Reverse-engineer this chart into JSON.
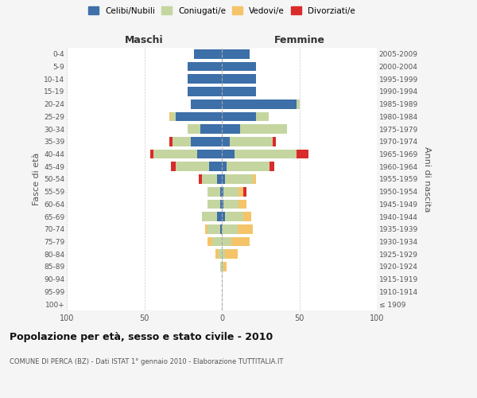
{
  "age_groups": [
    "100+",
    "95-99",
    "90-94",
    "85-89",
    "80-84",
    "75-79",
    "70-74",
    "65-69",
    "60-64",
    "55-59",
    "50-54",
    "45-49",
    "40-44",
    "35-39",
    "30-34",
    "25-29",
    "20-24",
    "15-19",
    "10-14",
    "5-9",
    "0-4"
  ],
  "birth_years": [
    "≤ 1909",
    "1910-1914",
    "1915-1919",
    "1920-1924",
    "1925-1929",
    "1930-1934",
    "1935-1939",
    "1940-1944",
    "1945-1949",
    "1950-1954",
    "1955-1959",
    "1960-1964",
    "1965-1969",
    "1970-1974",
    "1975-1979",
    "1980-1984",
    "1985-1989",
    "1990-1994",
    "1995-1999",
    "2000-2004",
    "2005-2009"
  ],
  "maschi": {
    "celibi": [
      0,
      0,
      0,
      0,
      0,
      0,
      1,
      3,
      1,
      1,
      3,
      8,
      16,
      20,
      14,
      30,
      20,
      22,
      22,
      22,
      18
    ],
    "coniugati": [
      0,
      0,
      0,
      1,
      2,
      6,
      8,
      10,
      8,
      8,
      10,
      22,
      28,
      12,
      8,
      3,
      0,
      0,
      0,
      0,
      0
    ],
    "vedovi": [
      0,
      0,
      0,
      0,
      2,
      3,
      2,
      0,
      0,
      0,
      0,
      0,
      0,
      0,
      0,
      1,
      0,
      0,
      0,
      0,
      0
    ],
    "divorziati": [
      0,
      0,
      0,
      0,
      0,
      0,
      0,
      0,
      0,
      0,
      2,
      3,
      2,
      2,
      0,
      0,
      0,
      0,
      0,
      0,
      0
    ]
  },
  "femmine": {
    "nubili": [
      0,
      0,
      0,
      0,
      0,
      0,
      0,
      2,
      1,
      1,
      2,
      3,
      8,
      5,
      12,
      22,
      48,
      22,
      22,
      22,
      18
    ],
    "coniugate": [
      0,
      0,
      0,
      1,
      2,
      6,
      10,
      12,
      10,
      10,
      18,
      28,
      40,
      28,
      30,
      8,
      2,
      0,
      0,
      0,
      0
    ],
    "vedove": [
      0,
      0,
      0,
      2,
      8,
      12,
      10,
      5,
      5,
      3,
      2,
      0,
      0,
      0,
      0,
      0,
      0,
      0,
      0,
      0,
      0
    ],
    "divorziate": [
      0,
      0,
      0,
      0,
      0,
      0,
      0,
      0,
      0,
      2,
      0,
      3,
      8,
      2,
      0,
      0,
      0,
      0,
      0,
      0,
      0
    ]
  },
  "colors": {
    "celibi_nubili": "#3D6FA8",
    "coniugati": "#C5D5A0",
    "vedovi": "#F5C469",
    "divorziati": "#D92B2B"
  },
  "xlim": 100,
  "title": "Popolazione per età, sesso e stato civile - 2010",
  "subtitle": "COMUNE DI PERCA (BZ) - Dati ISTAT 1° gennaio 2010 - Elaborazione TUTTITALIA.IT",
  "ylabel_left": "Fasce di età",
  "ylabel_right": "Anni di nascita",
  "xlabel_left": "Maschi",
  "xlabel_right": "Femmine",
  "legend_labels": [
    "Celibi/Nubili",
    "Coniugati/e",
    "Vedovi/e",
    "Divorziati/e"
  ],
  "bg_color": "#f5f5f5",
  "plot_bg_color": "#ffffff"
}
